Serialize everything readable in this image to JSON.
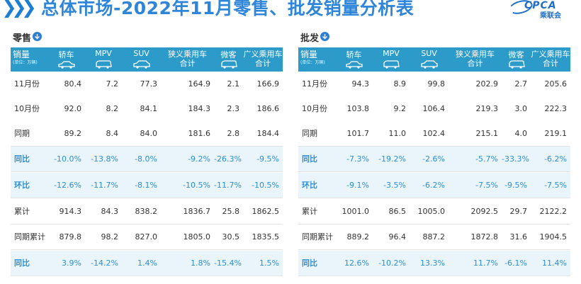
{
  "header": {
    "title": "总体市场-2022年11月零售、批发销量分析表",
    "logo_text": "CPCA",
    "logo_cn": "乘联会"
  },
  "colors": {
    "accent": "#2c9bc9",
    "highlight_text": "#2c8fd6",
    "title": "#2f86d9"
  },
  "columns": {
    "first_label": "销量",
    "unit": "(单位：万辆)",
    "names": [
      "轿车",
      "MPV",
      "SUV",
      "狭义乘用车\n合计",
      "微客",
      "广义乘用车\n合计"
    ],
    "icons": [
      "sedan-icon",
      "mpv-icon",
      "suv-icon",
      "",
      "microvan-icon",
      ""
    ]
  },
  "retail": {
    "title": "零售",
    "rows": [
      {
        "label": "11月份",
        "values": [
          "80.4",
          "7.2",
          "77.3",
          "164.9",
          "2.1",
          "166.9"
        ]
      },
      {
        "label": "10月份",
        "values": [
          "92.0",
          "8.2",
          "84.1",
          "184.3",
          "2.3",
          "186.6"
        ]
      },
      {
        "label": "同期",
        "values": [
          "89.2",
          "8.4",
          "84.0",
          "181.6",
          "2.8",
          "184.4"
        ]
      },
      {
        "label": "同比",
        "values": [
          "-10.0%",
          "-13.8%",
          "-8.0%",
          "-9.2%",
          "-26.3%",
          "-9.5%"
        ]
      },
      {
        "label": "环比",
        "values": [
          "-12.6%",
          "-11.7%",
          "-8.1%",
          "-10.5%",
          "-11.7%",
          "-10.5%"
        ]
      },
      {
        "label": "累计",
        "values": [
          "914.3",
          "84.3",
          "838.2",
          "1836.7",
          "25.8",
          "1862.5"
        ]
      },
      {
        "label": "同期累计",
        "values": [
          "879.8",
          "98.2",
          "827.0",
          "1805.0",
          "30.5",
          "1835.5"
        ]
      },
      {
        "label": "同比",
        "values": [
          "3.9%",
          "-14.2%",
          "1.4%",
          "1.8%",
          "-15.4%",
          "1.5%"
        ]
      }
    ]
  },
  "wholesale": {
    "title": "批发",
    "rows": [
      {
        "label": "11月份",
        "values": [
          "94.3",
          "8.9",
          "99.8",
          "202.9",
          "2.7",
          "205.6"
        ]
      },
      {
        "label": "10月份",
        "values": [
          "103.8",
          "9.2",
          "106.4",
          "219.3",
          "3.0",
          "222.3"
        ]
      },
      {
        "label": "同期",
        "values": [
          "101.7",
          "11.0",
          "102.4",
          "215.1",
          "4.0",
          "219.1"
        ]
      },
      {
        "label": "同比",
        "values": [
          "-7.3%",
          "-19.2%",
          "-2.6%",
          "-5.7%",
          "-33.3%",
          "-6.2%"
        ]
      },
      {
        "label": "环比",
        "values": [
          "-9.1%",
          "-3.5%",
          "-6.2%",
          "-7.5%",
          "-9.5%",
          "-7.5%"
        ]
      },
      {
        "label": "累计",
        "values": [
          "1001.0",
          "86.5",
          "1005.0",
          "2092.5",
          "29.7",
          "2122.2"
        ]
      },
      {
        "label": "同期累计",
        "values": [
          "889.2",
          "96.4",
          "887.2",
          "1872.8",
          "31.6",
          "1904.5"
        ]
      },
      {
        "label": "同比",
        "values": [
          "12.6%",
          "-10.2%",
          "13.3%",
          "11.7%",
          "-6.1%",
          "11.4%"
        ]
      }
    ]
  }
}
